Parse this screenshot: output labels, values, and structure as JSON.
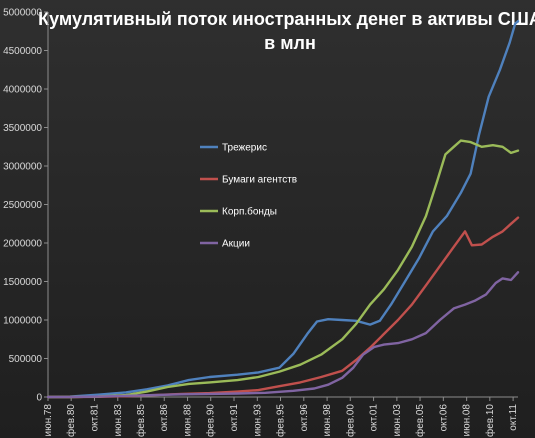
{
  "chart_data": {
    "type": "line",
    "title_lines": [
      "Кумулятивный поток иностранных денег в активы США",
      "в млн"
    ],
    "xlabel": "",
    "ylabel": "",
    "ylim": [
      0,
      5000000
    ],
    "yticks": [
      0,
      500000,
      1000000,
      1500000,
      2000000,
      2500000,
      3000000,
      3500000,
      4000000,
      4500000,
      5000000
    ],
    "ytick_labels": [
      "0",
      "500000",
      "1000000",
      "1500000",
      "2000000",
      "2500000",
      "3000000",
      "3500000",
      "4000000",
      "4500000",
      "5000000"
    ],
    "xlim": [
      1978.42,
      2012.1
    ],
    "xticks": [
      1978.42,
      1980.08,
      1981.75,
      1983.42,
      1985.08,
      1986.75,
      1988.42,
      1990.08,
      1991.75,
      1993.42,
      1995.08,
      1996.75,
      1998.42,
      2000.08,
      2001.75,
      2003.42,
      2005.08,
      2006.75,
      2008.42,
      2010.08,
      2011.75
    ],
    "xtick_labels": [
      "июн.78",
      "фев.80",
      "окт.81",
      "июн.83",
      "фев.85",
      "окт.86",
      "июн.88",
      "фев.90",
      "окт.91",
      "июн.93",
      "фев.95",
      "окт.96",
      "июн.98",
      "фев.00",
      "окт.01",
      "июн.03",
      "фев.05",
      "окт.06",
      "июн.08",
      "фев.10",
      "окт.11"
    ],
    "grid": false,
    "legend_position": "center-left",
    "series": [
      {
        "name": "Трежерис",
        "color": "#4f81bd",
        "points": [
          [
            1978.42,
            0
          ],
          [
            1980.0,
            5000
          ],
          [
            1982.0,
            30000
          ],
          [
            1984.0,
            60000
          ],
          [
            1985.5,
            100000
          ],
          [
            1987.0,
            150000
          ],
          [
            1988.5,
            220000
          ],
          [
            1990.0,
            260000
          ],
          [
            1992.0,
            290000
          ],
          [
            1993.5,
            320000
          ],
          [
            1995.0,
            380000
          ],
          [
            1996.0,
            560000
          ],
          [
            1997.0,
            820000
          ],
          [
            1997.7,
            980000
          ],
          [
            1998.5,
            1010000
          ],
          [
            1999.5,
            1000000
          ],
          [
            2000.5,
            990000
          ],
          [
            2001.5,
            940000
          ],
          [
            2002.2,
            990000
          ],
          [
            2003.0,
            1200000
          ],
          [
            2004.0,
            1500000
          ],
          [
            2005.0,
            1800000
          ],
          [
            2006.0,
            2150000
          ],
          [
            2007.0,
            2350000
          ],
          [
            2008.0,
            2650000
          ],
          [
            2008.7,
            2900000
          ],
          [
            2009.3,
            3400000
          ],
          [
            2010.0,
            3900000
          ],
          [
            2010.8,
            4250000
          ],
          [
            2011.5,
            4600000
          ],
          [
            2011.9,
            4850000
          ],
          [
            2012.1,
            4880000
          ]
        ]
      },
      {
        "name": "Бумаги агентств",
        "color": "#c0504d",
        "points": [
          [
            1978.42,
            0
          ],
          [
            1980.0,
            0
          ],
          [
            1982.0,
            3000
          ],
          [
            1984.0,
            10000
          ],
          [
            1986.0,
            25000
          ],
          [
            1988.0,
            40000
          ],
          [
            1990.0,
            50000
          ],
          [
            1992.0,
            70000
          ],
          [
            1993.5,
            90000
          ],
          [
            1995.0,
            140000
          ],
          [
            1996.5,
            190000
          ],
          [
            1998.0,
            260000
          ],
          [
            1999.5,
            340000
          ],
          [
            2000.5,
            480000
          ],
          [
            2001.5,
            640000
          ],
          [
            2002.5,
            820000
          ],
          [
            2003.5,
            1000000
          ],
          [
            2004.5,
            1200000
          ],
          [
            2005.5,
            1450000
          ],
          [
            2006.5,
            1700000
          ],
          [
            2007.5,
            1950000
          ],
          [
            2008.3,
            2150000
          ],
          [
            2008.8,
            1970000
          ],
          [
            2009.5,
            1980000
          ],
          [
            2010.3,
            2080000
          ],
          [
            2011.0,
            2150000
          ],
          [
            2011.6,
            2250000
          ],
          [
            2012.1,
            2330000
          ]
        ]
      },
      {
        "name": "Корп.бонды",
        "color": "#9bbb59",
        "points": [
          [
            1978.42,
            0
          ],
          [
            1980.0,
            0
          ],
          [
            1982.0,
            5000
          ],
          [
            1984.0,
            25000
          ],
          [
            1985.5,
            70000
          ],
          [
            1987.0,
            130000
          ],
          [
            1988.5,
            170000
          ],
          [
            1990.0,
            190000
          ],
          [
            1992.0,
            220000
          ],
          [
            1993.5,
            260000
          ],
          [
            1995.0,
            330000
          ],
          [
            1996.5,
            420000
          ],
          [
            1998.0,
            550000
          ],
          [
            1999.5,
            750000
          ],
          [
            2000.5,
            950000
          ],
          [
            2001.5,
            1200000
          ],
          [
            2002.5,
            1400000
          ],
          [
            2003.5,
            1650000
          ],
          [
            2004.5,
            1950000
          ],
          [
            2005.5,
            2350000
          ],
          [
            2006.3,
            2800000
          ],
          [
            2006.9,
            3150000
          ],
          [
            2007.5,
            3250000
          ],
          [
            2008.0,
            3330000
          ],
          [
            2008.7,
            3310000
          ],
          [
            2009.5,
            3250000
          ],
          [
            2010.3,
            3270000
          ],
          [
            2011.0,
            3250000
          ],
          [
            2011.6,
            3170000
          ],
          [
            2012.1,
            3200000
          ]
        ]
      },
      {
        "name": "Акции",
        "color": "#8064a2",
        "points": [
          [
            1978.42,
            0
          ],
          [
            1980.0,
            0
          ],
          [
            1982.0,
            5000
          ],
          [
            1984.0,
            15000
          ],
          [
            1986.0,
            25000
          ],
          [
            1988.0,
            35000
          ],
          [
            1990.0,
            40000
          ],
          [
            1992.0,
            45000
          ],
          [
            1994.0,
            55000
          ],
          [
            1996.0,
            80000
          ],
          [
            1997.5,
            110000
          ],
          [
            1998.5,
            160000
          ],
          [
            1999.5,
            250000
          ],
          [
            2000.3,
            380000
          ],
          [
            2001.0,
            550000
          ],
          [
            2001.8,
            650000
          ],
          [
            2002.5,
            680000
          ],
          [
            2003.5,
            700000
          ],
          [
            2004.5,
            750000
          ],
          [
            2005.5,
            830000
          ],
          [
            2006.5,
            1000000
          ],
          [
            2007.5,
            1150000
          ],
          [
            2008.3,
            1200000
          ],
          [
            2009.0,
            1250000
          ],
          [
            2009.8,
            1330000
          ],
          [
            2010.5,
            1480000
          ],
          [
            2011.0,
            1540000
          ],
          [
            2011.6,
            1520000
          ],
          [
            2012.1,
            1620000
          ]
        ]
      }
    ]
  }
}
